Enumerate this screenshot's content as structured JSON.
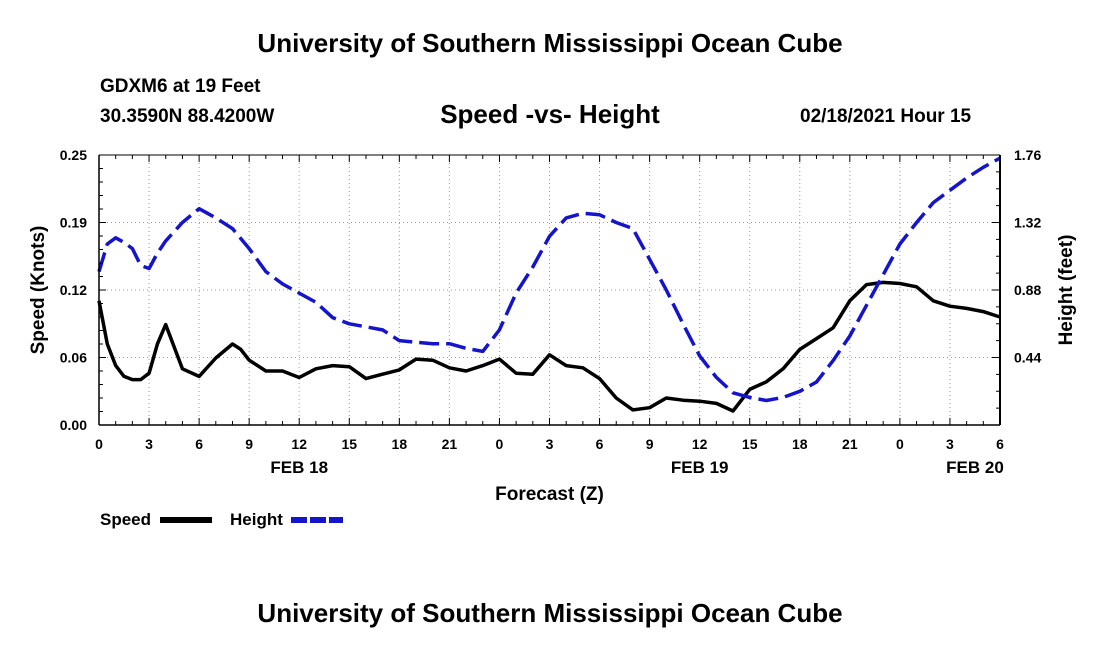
{
  "header": {
    "top_title": "University of Southern Mississippi Ocean Cube",
    "station": "GDXM6 at 19 Feet",
    "coordinates": "30.3590N 88.4200W",
    "chart_title": "Speed -vs- Height",
    "datetime": "02/18/2021 Hour 15",
    "bottom_title": "University of Southern Mississippi Ocean Cube"
  },
  "chart_data": {
    "type": "line",
    "title": "Speed -vs- Height",
    "xlabel": "Forecast (Z)",
    "ylabel_left": "Speed (Knots)",
    "ylabel_right": "Height (feet)",
    "xlim": [
      0,
      54
    ],
    "ylim_left": [
      0,
      0.25
    ],
    "ylim_right": [
      0,
      1.76
    ],
    "x_ticks": [
      0,
      3,
      6,
      9,
      12,
      15,
      18,
      21,
      24,
      27,
      30,
      33,
      36,
      39,
      42,
      45,
      48,
      51,
      54
    ],
    "x_tick_labels": [
      "0",
      "3",
      "6",
      "9",
      "12",
      "15",
      "18",
      "21",
      "0",
      "3",
      "6",
      "9",
      "12",
      "15",
      "18",
      "21",
      "0",
      "3",
      "6"
    ],
    "day_labels": [
      {
        "x": 12,
        "label": "FEB 18"
      },
      {
        "x": 36,
        "label": "FEB 19"
      },
      {
        "x": 52.5,
        "label": "FEB 20"
      }
    ],
    "left_ticks": [
      "0.00",
      "0.06",
      "0.12",
      "0.19",
      "0.25"
    ],
    "left_tick_values": [
      0,
      0.0625,
      0.125,
      0.1875,
      0.25
    ],
    "right_ticks": [
      "0.44",
      "0.88",
      "1.32",
      "1.76"
    ],
    "right_tick_values": [
      0.44,
      0.88,
      1.32,
      1.76
    ],
    "grid": true,
    "legend": {
      "position": "bottom-left"
    },
    "series": [
      {
        "name": "Speed",
        "axis": "left",
        "color": "#000000",
        "style": "solid",
        "x": [
          0,
          0.5,
          1,
          1.5,
          2,
          2.5,
          3,
          3.5,
          4,
          5,
          6,
          7,
          8,
          8.5,
          9,
          10,
          11,
          12,
          13,
          14,
          15,
          16,
          17,
          18,
          19,
          20,
          21,
          22,
          23,
          24,
          25,
          26,
          27,
          28,
          29,
          30,
          31,
          32,
          33,
          34,
          35,
          36,
          37,
          38,
          39,
          40,
          41,
          42,
          43,
          44,
          45,
          46,
          47,
          48,
          49,
          50,
          51,
          52,
          53,
          54
        ],
        "values": [
          0.115,
          0.075,
          0.055,
          0.045,
          0.042,
          0.042,
          0.048,
          0.075,
          0.093,
          0.052,
          0.045,
          0.062,
          0.075,
          0.07,
          0.06,
          0.05,
          0.05,
          0.044,
          0.052,
          0.055,
          0.054,
          0.043,
          0.047,
          0.051,
          0.061,
          0.06,
          0.053,
          0.05,
          0.055,
          0.061,
          0.048,
          0.047,
          0.065,
          0.055,
          0.053,
          0.043,
          0.025,
          0.014,
          0.016,
          0.025,
          0.023,
          0.022,
          0.02,
          0.013,
          0.033,
          0.04,
          0.052,
          0.07,
          0.08,
          0.09,
          0.115,
          0.13,
          0.132,
          0.131,
          0.128,
          0.115,
          0.11,
          0.108,
          0.105,
          0.1
        ]
      },
      {
        "name": "Height",
        "axis": "right",
        "color": "#1414cc",
        "style": "dashed",
        "x": [
          0,
          0.5,
          1,
          1.5,
          2,
          2.5,
          3,
          3.5,
          4,
          5,
          6,
          7,
          8,
          9,
          10,
          11,
          12,
          13,
          14,
          15,
          16,
          17,
          18,
          19,
          20,
          21,
          22,
          23,
          24,
          25,
          26,
          27,
          28,
          29,
          30,
          31,
          32,
          33,
          34,
          35,
          36,
          37,
          38,
          39,
          40,
          41,
          42,
          43,
          44,
          45,
          46,
          47,
          48,
          49,
          50,
          51,
          52,
          53,
          54
        ],
        "values": [
          1.0,
          1.18,
          1.22,
          1.19,
          1.15,
          1.04,
          1.02,
          1.12,
          1.2,
          1.32,
          1.41,
          1.35,
          1.28,
          1.15,
          1.0,
          0.92,
          0.86,
          0.8,
          0.7,
          0.66,
          0.64,
          0.62,
          0.55,
          0.54,
          0.53,
          0.53,
          0.5,
          0.48,
          0.62,
          0.86,
          1.03,
          1.23,
          1.35,
          1.38,
          1.37,
          1.32,
          1.28,
          1.08,
          0.88,
          0.66,
          0.45,
          0.31,
          0.21,
          0.18,
          0.16,
          0.18,
          0.22,
          0.28,
          0.42,
          0.58,
          0.78,
          0.98,
          1.18,
          1.32,
          1.45,
          1.53,
          1.61,
          1.68,
          1.74
        ]
      }
    ]
  }
}
